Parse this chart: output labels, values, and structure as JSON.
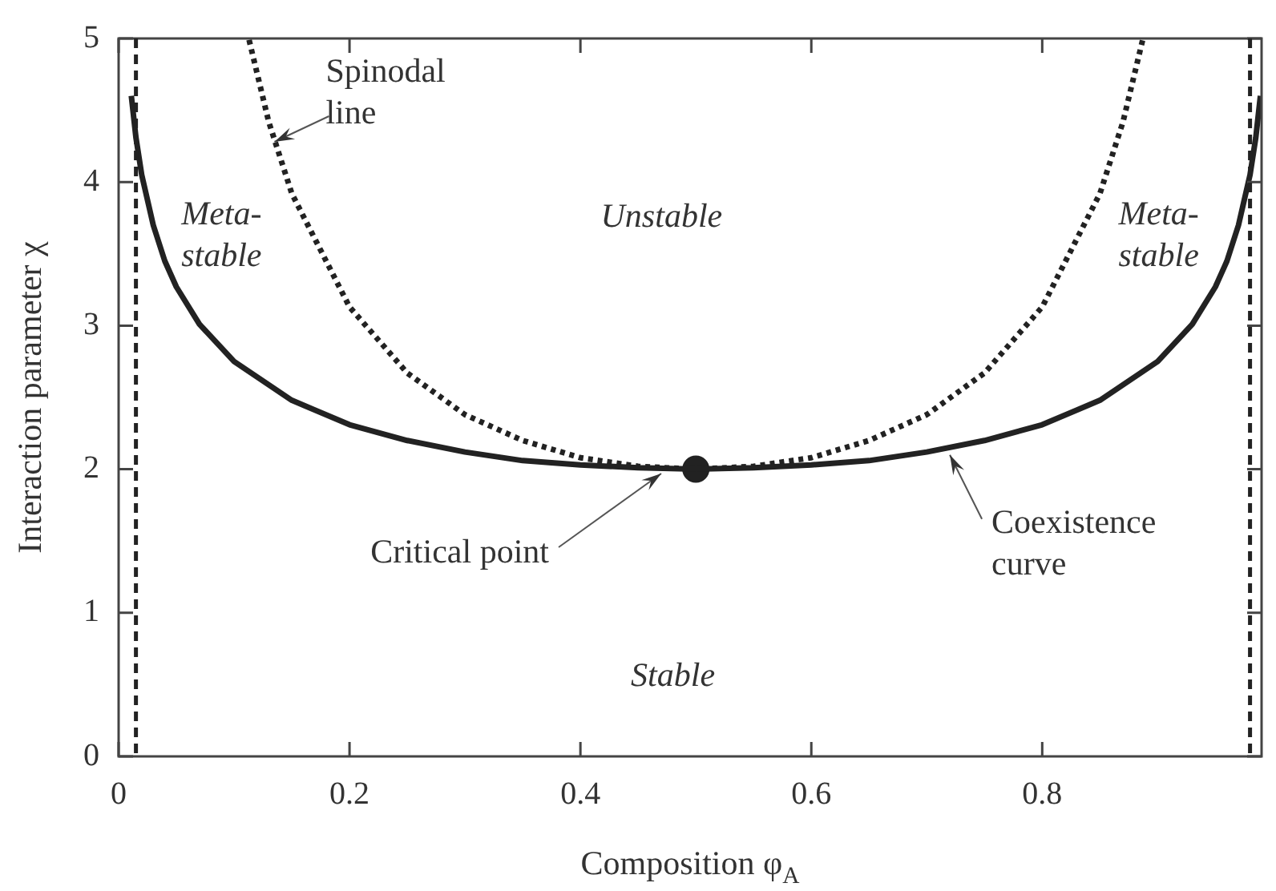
{
  "chart_data": {
    "type": "line",
    "xlabel": "Composition φ$_{A}$",
    "ylabel": "Interaction parameter χ",
    "xlim": [
      0,
      0.99
    ],
    "ylim": [
      0,
      5
    ],
    "xticks": [
      0,
      0.2,
      0.4,
      0.6,
      0.8
    ],
    "yticks": [
      0,
      1,
      2,
      3,
      4,
      5
    ],
    "grid": false,
    "legend": false,
    "marker": "none",
    "series": [
      {
        "line_style": "solid",
        "color": "#222222",
        "x": [
          0.011,
          0.015,
          0.02,
          0.03,
          0.04,
          0.05,
          0.07,
          0.1,
          0.15,
          0.2,
          0.25,
          0.3,
          0.35,
          0.4,
          0.45,
          0.5,
          0.55,
          0.6,
          0.65,
          0.7,
          0.75,
          0.8,
          0.85,
          0.9,
          0.93,
          0.95,
          0.96,
          0.97,
          0.98,
          0.985,
          0.989
        ],
        "values": [
          4.6,
          4.31,
          4.05,
          3.7,
          3.45,
          3.27,
          3.01,
          2.75,
          2.48,
          2.31,
          2.2,
          2.12,
          2.06,
          2.03,
          2.01,
          2.0,
          2.01,
          2.03,
          2.06,
          2.12,
          2.2,
          2.31,
          2.48,
          2.75,
          3.01,
          3.27,
          3.45,
          3.7,
          4.05,
          4.31,
          4.6
        ]
      },
      {
        "line_style": "dotted",
        "color": "#222222",
        "x": [
          0.113,
          0.13,
          0.15,
          0.2,
          0.25,
          0.3,
          0.35,
          0.4,
          0.45,
          0.5,
          0.55,
          0.6,
          0.65,
          0.7,
          0.75,
          0.8,
          0.85,
          0.87,
          0.887
        ],
        "values": [
          4.99,
          4.42,
          3.92,
          3.13,
          2.67,
          2.38,
          2.2,
          2.08,
          2.02,
          2.0,
          2.02,
          2.08,
          2.2,
          2.38,
          2.67,
          3.13,
          3.92,
          4.42,
          4.99
        ]
      },
      {
        "type": "scatter",
        "marker": "circle",
        "color": "#222222",
        "x": [
          0.5
        ],
        "values": [
          2.0
        ]
      }
    ],
    "ref_lines": [
      {
        "axis": "x",
        "value": 0.015,
        "line_style": "dashed",
        "color": "#222222"
      },
      {
        "axis": "x",
        "value": 0.98,
        "line_style": "dashed",
        "color": "#222222"
      }
    ],
    "annotations": [
      {
        "text": "Spinodal line",
        "x": 0.135,
        "y": 4.28
      },
      {
        "text": "Critical point",
        "x": 0.47,
        "y": 1.97
      },
      {
        "text": "Coexistence curve",
        "x": 0.72,
        "y": 2.1
      },
      "Meta-stable",
      "Unstable",
      "Meta-stable",
      "Stable"
    ]
  }
}
